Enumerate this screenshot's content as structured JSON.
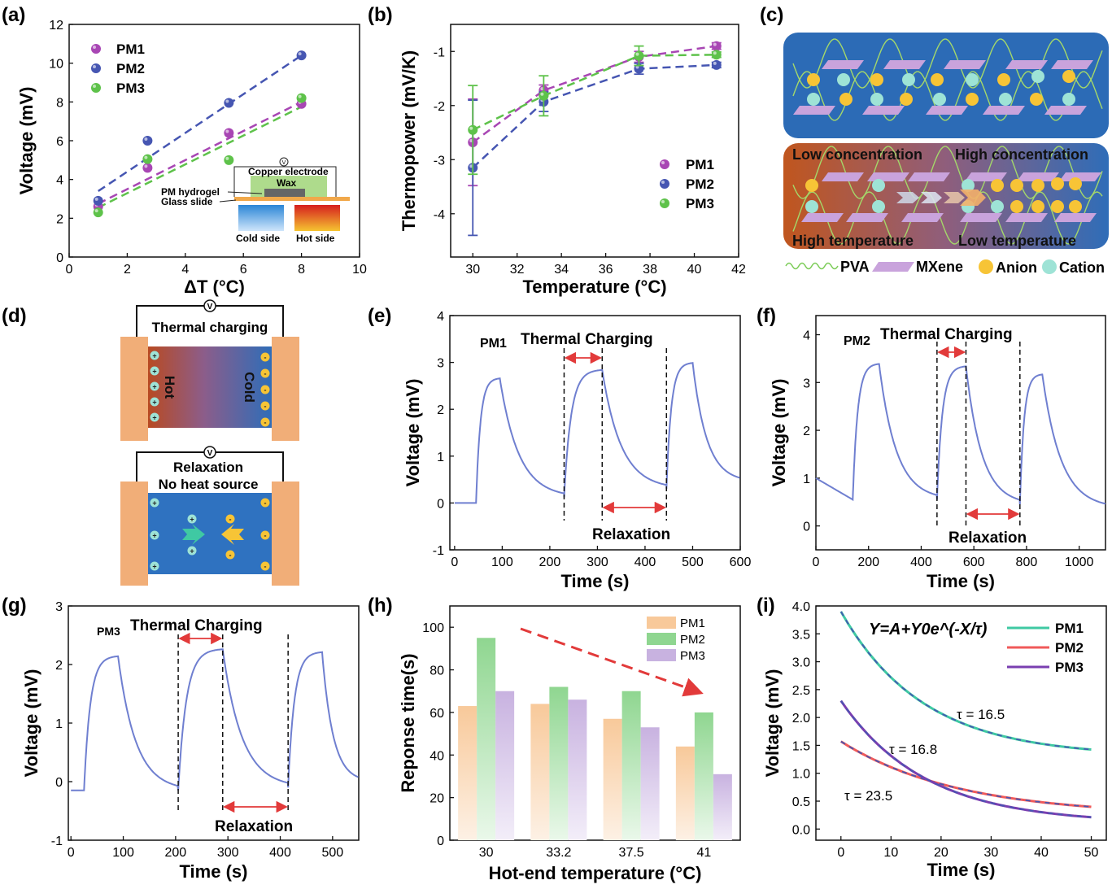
{
  "panel_letters": [
    "(a)",
    "(b)",
    "(c)",
    "(d)",
    "(e)",
    "(f)",
    "(g)",
    "(h)",
    "(i)"
  ],
  "colors": {
    "PM1": "#a846b4",
    "PM2": "#4656b2",
    "PM3": "#5ec24a",
    "trace": "#6f7fd0",
    "arrow": "#e23a3a",
    "h_PM1": "#f8c99a",
    "h_PM2": "#8fd690",
    "h_PM3": "#c8b2e0",
    "i_PM1": "#3fc9a3",
    "i_PM2": "#f05a5a",
    "i_PM3": "#7a3fb0",
    "copper": "#f1ae78",
    "bluebg": "#2c6bb6",
    "anion": "#f7c436",
    "cation": "#9ee3d6"
  },
  "panel_c": {
    "low_concentration": "Low concentration",
    "high_concentration": "High concentration",
    "high_temperature": "High temperature",
    "low_temperature": "Low temperature",
    "legend": {
      "pva": "PVA",
      "mxene": "MXene",
      "anion": "Anion",
      "cation": "Cation"
    }
  },
  "panel_d": {
    "thermal_charging": "Thermal charging",
    "hot": "Hot",
    "cold": "Cold",
    "relaxation": "Relaxation",
    "no_heat": "No heat source",
    "v": "V",
    "plus": "+",
    "minus": "-"
  },
  "panel_a_inset": {
    "copper_electrode": "Copper electrode",
    "wax": "Wax",
    "pm_hydrogel": "PM hydrogel",
    "glass_slide": "Glass slide",
    "cold_side": "Cold side",
    "hot_side": "Hot side",
    "v": "V"
  },
  "chart_data": [
    {
      "panel": "a",
      "type": "scatter",
      "xlabel": "ΔT (°C)",
      "ylabel": "Voltage (mV)",
      "xlim": [
        0,
        10
      ],
      "ylim": [
        0,
        12
      ],
      "xticks": [
        0,
        2,
        4,
        6,
        8,
        10
      ],
      "yticks": [
        0,
        2,
        4,
        6,
        8,
        10,
        12
      ],
      "legend_position": "top-left",
      "series": [
        {
          "name": "PM1",
          "x": [
            1,
            2.7,
            5.5,
            8
          ],
          "y": [
            2.6,
            4.6,
            6.4,
            7.9
          ]
        },
        {
          "name": "PM2",
          "x": [
            1,
            2.7,
            5.5,
            8
          ],
          "y": [
            2.9,
            6.0,
            7.95,
            10.4
          ]
        },
        {
          "name": "PM3",
          "x": [
            1,
            2.7,
            5.5,
            8
          ],
          "y": [
            2.3,
            5.05,
            5.0,
            8.2
          ]
        }
      ],
      "fits": [
        {
          "name": "PM1",
          "x": [
            1,
            8
          ],
          "y": [
            2.75,
            8.0
          ]
        },
        {
          "name": "PM2",
          "x": [
            1,
            8
          ],
          "y": [
            3.4,
            10.4
          ]
        },
        {
          "name": "PM3",
          "x": [
            1,
            8
          ],
          "y": [
            2.55,
            7.75
          ]
        }
      ]
    },
    {
      "panel": "b",
      "type": "line",
      "xlabel": "Temperature (°C)",
      "ylabel": "Thermopower (mV/K)",
      "xlim": [
        29,
        42
      ],
      "ylim": [
        -4.8,
        -0.5
      ],
      "xticks": [
        30,
        32,
        34,
        36,
        38,
        40,
        42
      ],
      "yticks": [
        -4,
        -3,
        -2,
        -1
      ],
      "legend_position": "bottom-right",
      "series": [
        {
          "name": "PM1",
          "x": [
            30,
            33.2,
            37.5,
            41
          ],
          "y": [
            -2.68,
            -1.72,
            -1.1,
            -0.9
          ],
          "err": [
            0.8,
            0.1,
            0.1,
            0.06
          ]
        },
        {
          "name": "PM2",
          "x": [
            30,
            33.2,
            37.5,
            41
          ],
          "y": [
            -3.15,
            -1.93,
            -1.32,
            -1.25
          ],
          "err": [
            1.25,
            0.18,
            0.1,
            0.05
          ]
        },
        {
          "name": "PM3",
          "x": [
            30,
            33.2,
            37.5,
            41
          ],
          "y": [
            -2.45,
            -1.82,
            -1.08,
            -1.06
          ],
          "err": [
            0.82,
            0.37,
            0.18,
            0.05
          ]
        }
      ]
    },
    {
      "panel": "e",
      "type": "line",
      "xlabel": "Time (s)",
      "ylabel": "Voltage (mV)",
      "xlim": [
        -10,
        600
      ],
      "ylim": [
        -1,
        4
      ],
      "xticks": [
        0,
        100,
        200,
        300,
        400,
        500,
        600
      ],
      "yticks": [
        -1,
        0,
        1,
        2,
        3,
        4
      ],
      "series_label": "PM1",
      "charging_label": "Thermal Charging",
      "relaxation_label": "Relaxation",
      "cycles": [
        {
          "on": 45,
          "off": 95,
          "peak": 2.67,
          "base": 0.0,
          "tail": 0.12
        },
        {
          "on": 230,
          "off": 310,
          "peak": 2.85,
          "base": 0.12,
          "tail": 0.3
        },
        {
          "on": 445,
          "off": 500,
          "peak": 3.0,
          "base": 0.3,
          "tail": 0.45
        }
      ],
      "x_end": 600,
      "markers": [
        230,
        310,
        445
      ]
    },
    {
      "panel": "f",
      "type": "line",
      "xlabel": "Time (s)",
      "ylabel": "Voltage (mV)",
      "xlim": [
        0,
        1100
      ],
      "ylim": [
        -0.5,
        4.4
      ],
      "xticks": [
        0,
        200,
        400,
        600,
        800,
        1000
      ],
      "yticks": [
        0,
        1,
        2,
        3,
        4
      ],
      "series_label": "PM2",
      "charging_label": "Thermal Charging",
      "relaxation_label": "Relaxation",
      "start_value": 1.0,
      "cycles": [
        {
          "on": 140,
          "off": 240,
          "peak": 3.4,
          "base": 0.55,
          "tail": 0.55
        },
        {
          "on": 460,
          "off": 570,
          "peak": 3.35,
          "base": 0.55,
          "tail": 0.45
        },
        {
          "on": 775,
          "off": 860,
          "peak": 3.18,
          "base": 0.45,
          "tail": 0.37
        }
      ],
      "x_end": 1100,
      "markers": [
        460,
        570,
        775
      ]
    },
    {
      "panel": "g",
      "type": "line",
      "xlabel": "Time (s)",
      "ylabel": "Voltage (mV)",
      "xlim": [
        -5,
        550
      ],
      "ylim": [
        -1,
        3
      ],
      "xticks": [
        0,
        100,
        200,
        300,
        400,
        500
      ],
      "yticks": [
        -1,
        0,
        1,
        2,
        3
      ],
      "series_label": "PM3",
      "charging_label": "Thermal Charging",
      "relaxation_label": "Relaxation",
      "start_value": -0.15,
      "cycles": [
        {
          "on": 25,
          "off": 90,
          "peak": 2.15,
          "base": -0.15,
          "tail": -0.15
        },
        {
          "on": 205,
          "off": 290,
          "peak": 2.27,
          "base": -0.15,
          "tail": -0.1
        },
        {
          "on": 415,
          "off": 480,
          "peak": 2.22,
          "base": -0.1,
          "tail": 0.0
        }
      ],
      "x_end": 550,
      "markers": [
        205,
        290,
        415
      ]
    },
    {
      "panel": "h",
      "type": "bar",
      "xlabel": "Hot-end temperature (°C)",
      "ylabel": "Reponse time(s)",
      "ylim": [
        0,
        110
      ],
      "yticks": [
        0,
        20,
        40,
        60,
        80,
        100
      ],
      "categories": [
        "30",
        "33.2",
        "37.5",
        "41"
      ],
      "legend_position": "top-right",
      "series": [
        {
          "name": "PM1",
          "values": [
            63,
            64,
            57,
            44
          ]
        },
        {
          "name": "PM2",
          "values": [
            95,
            72,
            70,
            60
          ]
        },
        {
          "name": "PM3",
          "values": [
            70,
            66,
            53,
            31
          ]
        }
      ]
    },
    {
      "panel": "i",
      "type": "line",
      "xlabel": "Time (s)",
      "ylabel": "Voltage (mV)",
      "xlim": [
        -5,
        53
      ],
      "ylim": [
        -0.2,
        4.0
      ],
      "xticks": [
        0,
        10,
        20,
        30,
        40,
        50
      ],
      "yticks": [
        0.0,
        0.5,
        1.0,
        1.5,
        2.0,
        2.5,
        3.0,
        3.5,
        4.0
      ],
      "legend_position": "top-right",
      "equation": "Y=A+Y0e^(-X/τ)",
      "series": [
        {
          "name": "PM1",
          "A": 1.3,
          "Y0": 2.6,
          "tau": 16.5
        },
        {
          "name": "PM2",
          "A": 0.24,
          "Y0": 1.33,
          "tau": 23.5
        },
        {
          "name": "PM3",
          "A": 0.1,
          "Y0": 2.2,
          "tau": 16.8
        }
      ],
      "annotations": [
        "τ = 16.5",
        "τ = 16.8",
        "τ = 23.5"
      ]
    }
  ]
}
